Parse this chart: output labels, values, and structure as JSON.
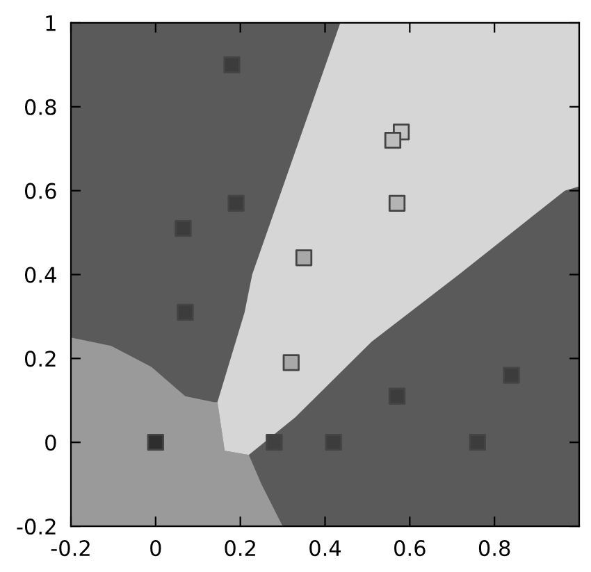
{
  "chart_data": {
    "type": "area",
    "series": [
      {
        "color": "#9a9a9a",
        "x": [
          -0.2,
          -0.2,
          -0.105,
          -0.01,
          0.07,
          0.137,
          0.146,
          0.163,
          0.22,
          0.25,
          0.3
        ],
        "values": [
          -0.2,
          0.25,
          0.23,
          0.18,
          0.11,
          0.096,
          0.096,
          -0.02,
          -0.03,
          -0.1,
          -0.2
        ]
      },
      {
        "color": "#d6d6d6",
        "x": [
          0.146,
          0.21,
          0.228,
          0.436,
          1.0,
          1.0,
          0.966,
          0.716,
          0.51,
          0.33,
          0.22,
          0.163
        ],
        "values": [
          0.096,
          0.31,
          0.4,
          1.0,
          1.0,
          0.61,
          0.6,
          0.4,
          0.24,
          0.06,
          -0.03,
          -0.02
        ]
      },
      {
        "type": "scatter",
        "marker": "square",
        "x": [
          0.18,
          0.065,
          0.19,
          0.07,
          0,
          0.35,
          0.32,
          0.58,
          0.56,
          0.57,
          0.28,
          0.42,
          0.57,
          0.76,
          0.84
        ],
        "values": [
          0.9,
          0.51,
          0.57,
          0.31,
          0,
          0.44,
          0.19,
          0.74,
          0.72,
          0.57,
          0,
          0,
          0.11,
          0,
          0.16
        ],
        "colors": [
          "#3c3c3c",
          "#3c3c3c",
          "#3c3c3c",
          "#3c3c3c",
          "#2e2e2e",
          "#a8a8a8",
          "#a8a8a8",
          "#c4c4c4",
          "#bcbcbc",
          "#b4b4b4",
          "#404040",
          "#3c3c3c",
          "#3c3c3c",
          "#3c3c3c",
          "#3c3c3c"
        ]
      }
    ],
    "xlim": [
      -0.2,
      1.0
    ],
    "ylim": [
      -0.2,
      1.0
    ],
    "xticks": [
      -0.2,
      0,
      0.2,
      0.4,
      0.6,
      0.8
    ],
    "yticks": [
      -0.2,
      0,
      0.2,
      0.4,
      0.6,
      0.8,
      1
    ],
    "grid": false,
    "legend": false
  }
}
